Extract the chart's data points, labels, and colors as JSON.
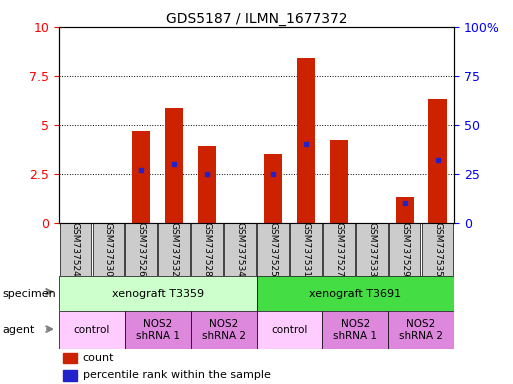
{
  "title": "GDS5187 / ILMN_1677372",
  "samples": [
    "GSM737524",
    "GSM737530",
    "GSM737526",
    "GSM737532",
    "GSM737528",
    "GSM737534",
    "GSM737525",
    "GSM737531",
    "GSM737527",
    "GSM737533",
    "GSM737529",
    "GSM737535"
  ],
  "counts": [
    0,
    0,
    4.7,
    5.85,
    3.9,
    0,
    3.5,
    8.4,
    4.2,
    0,
    1.3,
    6.3
  ],
  "percentiles": [
    0,
    0,
    27,
    30,
    25,
    0,
    25,
    40,
    0,
    0,
    10,
    32
  ],
  "ylim_left": [
    0,
    10
  ],
  "ylim_right": [
    0,
    100
  ],
  "yticks_left": [
    0,
    2.5,
    5,
    7.5,
    10
  ],
  "yticks_right": [
    0,
    25,
    50,
    75,
    100
  ],
  "bar_color": "#cc2200",
  "dot_color": "#2222cc",
  "specimen_groups": [
    {
      "label": "xenograft T3359",
      "start": 0,
      "end": 6,
      "color": "#ccffcc"
    },
    {
      "label": "xenograft T3691",
      "start": 6,
      "end": 12,
      "color": "#44dd44"
    }
  ],
  "agent_groups": [
    {
      "label": "control",
      "start": 0,
      "end": 2,
      "color": "#ffccff"
    },
    {
      "label": "NOS2\nshRNA 1",
      "start": 2,
      "end": 4,
      "color": "#dd88dd"
    },
    {
      "label": "NOS2\nshRNA 2",
      "start": 4,
      "end": 6,
      "color": "#dd88dd"
    },
    {
      "label": "control",
      "start": 6,
      "end": 8,
      "color": "#ffccff"
    },
    {
      "label": "NOS2\nshRNA 1",
      "start": 8,
      "end": 10,
      "color": "#dd88dd"
    },
    {
      "label": "NOS2\nshRNA 2",
      "start": 10,
      "end": 12,
      "color": "#dd88dd"
    }
  ],
  "specimen_label": "specimen",
  "agent_label": "agent",
  "count_label": "count",
  "percentile_label": "percentile rank within the sample"
}
